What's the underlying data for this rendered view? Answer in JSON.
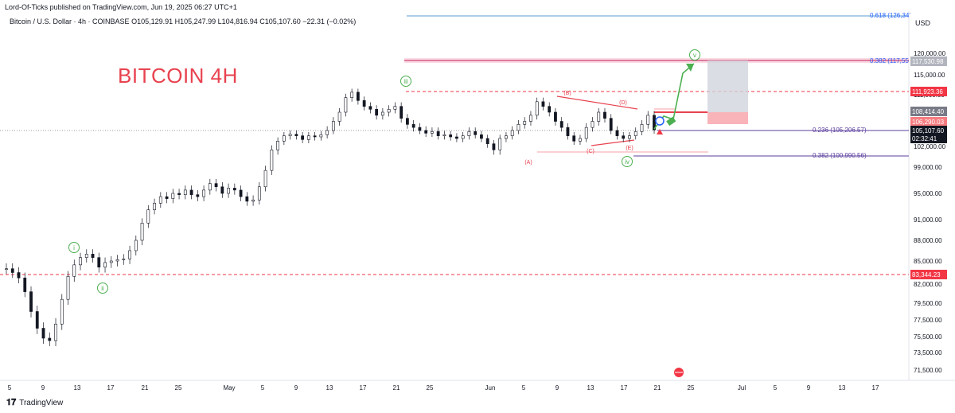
{
  "header": {
    "published": "Lord-Of-Ticks published on TradingView.com, Jun 19, 2025 06:27 UTC+1",
    "symbol": "Bitcoin / U.S. Dollar · 4h · COINBASE",
    "ohlc": "O105,129.91 H105,247.99 L104,816.94 C105,107.60 −22.31 (−0.02%)"
  },
  "brand": {
    "name": "TradingView"
  },
  "currency": "USD",
  "annotation_title": "BITCOIN 4H",
  "chart_data": {
    "type": "line",
    "title": "",
    "x_ticks": [
      "5",
      "9",
      "13",
      "17",
      "21",
      "25",
      "May",
      "5",
      "9",
      "13",
      "17",
      "21",
      "25",
      "Jun",
      "5",
      "9",
      "13",
      "17",
      "21",
      "25",
      "Jul",
      "5",
      "9",
      "13",
      "17"
    ],
    "y_ticks": [
      120000,
      115000,
      111000,
      108000,
      105000,
      102000,
      99000,
      95000,
      91000,
      88000,
      85000,
      82000,
      79500,
      77500,
      75500,
      73500,
      71500
    ],
    "y_tick_labels": [
      "120,000.00",
      "115,000.00",
      "111,000.00",
      "108,000.00",
      "105,000.00",
      "102,000.00",
      "99,000.00",
      "95,000.00",
      "91,000.00",
      "88,000.00",
      "85,000.00",
      "82,000.00",
      "79,500.00",
      "77,500.00",
      "75,500.00",
      "73,500.00",
      "71,500.00"
    ],
    "price_labels": [
      {
        "text": "117,530.98",
        "color": "#b2b5be"
      },
      {
        "text": "111,923.36",
        "color": "#f23645"
      },
      {
        "text": "108,414.40",
        "color": "#787b86"
      },
      {
        "text": "106,290.03",
        "color": "#f77c80"
      },
      {
        "text": "105,107.60",
        "color": "#131722"
      },
      {
        "text": "02:32:41",
        "color": "#131722"
      },
      {
        "text": "83,344.23",
        "color": "#f23645"
      }
    ],
    "fib_labels": [
      {
        "text": "0.618 (126,34’",
        "color": "#2962ff"
      },
      {
        "text": "0.382 (117,55",
        "color": "#2962ff"
      },
      {
        "text": "0.236 (105,206.57)",
        "color": "#5b3f9e"
      },
      {
        "text": "0.382 (100,990.56)",
        "color": "#5b3f9e"
      }
    ],
    "wave_labels": [
      "i",
      "ii",
      "iii",
      "iv",
      "v"
    ],
    "correction_labels": [
      "(A)",
      "(B)",
      "(C)",
      "(D)",
      "(E)"
    ],
    "series": [
      {
        "values": [
          84000,
          83500,
          82800,
          81000,
          78500,
          76500,
          75300,
          75000,
          77000,
          80000,
          83000,
          84500,
          85500,
          86000,
          85500,
          84200,
          84800,
          85000,
          85200,
          85300,
          86500,
          88000,
          90500,
          92500,
          93500,
          94500,
          94200,
          95000,
          94800,
          95500,
          94800,
          94500,
          95500,
          96500,
          96000,
          95000,
          95800,
          95500,
          94500,
          93800,
          94000,
          96000,
          98500,
          101500,
          103000,
          104000,
          104300,
          104000,
          103300,
          104000,
          103800,
          104200,
          105000,
          106500,
          108000,
          110500,
          111500,
          110000,
          109000,
          108500,
          107500,
          108000,
          108500,
          109000,
          107000,
          106000,
          105500,
          105000,
          104500,
          104800,
          104000,
          104200,
          103800,
          103500,
          104000,
          104800,
          104200,
          103500,
          102500,
          101500,
          103500,
          104000,
          105000,
          106000,
          106500,
          107500,
          109800,
          109000,
          108000,
          106500,
          105500,
          104000,
          103000,
          103500,
          105500,
          106500,
          108000,
          107000,
          105000,
          104000,
          103500,
          104000,
          104800,
          106000,
          107500,
          105107
        ]
      }
    ]
  }
}
